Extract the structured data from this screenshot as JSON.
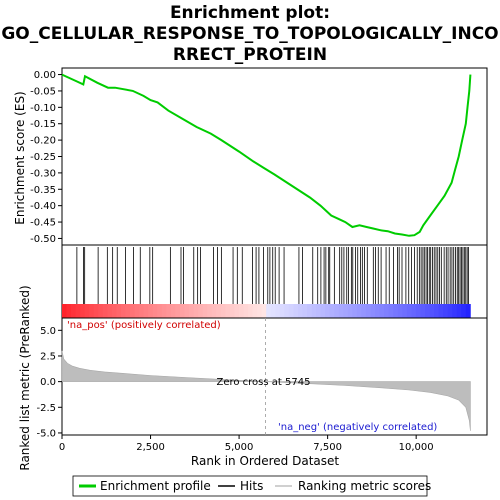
{
  "chart_data": {
    "type": "line",
    "title_lines": [
      "Enrichment plot:",
      "GO_CELLULAR_RESPONSE_TO_TOPOLOGICALLY_INCO",
      "RRECT_PROTEIN"
    ],
    "top_panel": {
      "ylabel": "Enrichment score (ES)",
      "ylim": [
        -0.52,
        0.02
      ],
      "yticks": [
        0.0,
        -0.05,
        -0.1,
        -0.15,
        -0.2,
        -0.25,
        -0.3,
        -0.35,
        -0.4,
        -0.45,
        -0.5
      ],
      "ytick_labels": [
        "0.00",
        "-0.05",
        "-0.10",
        "-0.15",
        "-0.20",
        "-0.25",
        "-0.30",
        "-0.35",
        "-0.40",
        "-0.45",
        "-0.50"
      ],
      "series": [
        {
          "name": "Enrichment profile",
          "color": "#00cc00",
          "x": [
            0,
            400,
            600,
            650,
            1000,
            1300,
            1500,
            2000,
            2300,
            2500,
            2700,
            3000,
            3400,
            3800,
            4200,
            4500,
            5000,
            5400,
            5700,
            6000,
            6500,
            7000,
            7300,
            7600,
            7800,
            8000,
            8200,
            8400,
            8600,
            8800,
            9000,
            9200,
            9400,
            9600,
            9800,
            9950,
            10100,
            10200,
            10400,
            10600,
            10800,
            11000,
            11100,
            11200,
            11300,
            11400,
            11450,
            11500,
            11530
          ],
          "y": [
            0.0,
            -0.02,
            -0.03,
            -0.005,
            -0.025,
            -0.04,
            -0.04,
            -0.05,
            -0.065,
            -0.078,
            -0.085,
            -0.11,
            -0.135,
            -0.16,
            -0.18,
            -0.2,
            -0.235,
            -0.265,
            -0.285,
            -0.305,
            -0.34,
            -0.375,
            -0.4,
            -0.43,
            -0.44,
            -0.45,
            -0.465,
            -0.46,
            -0.465,
            -0.47,
            -0.475,
            -0.478,
            -0.485,
            -0.488,
            -0.492,
            -0.49,
            -0.48,
            -0.46,
            -0.43,
            -0.4,
            -0.37,
            -0.33,
            -0.29,
            -0.25,
            -0.2,
            -0.15,
            -0.1,
            -0.05,
            0.0
          ]
        }
      ],
      "hits": [
        420,
        610,
        640,
        1020,
        1280,
        1430,
        1560,
        1790,
        2020,
        2210,
        2480,
        2560,
        3060,
        3360,
        3430,
        3720,
        3830,
        3910,
        4280,
        4390,
        4500,
        4830,
        4950,
        5090,
        5380,
        5480,
        5560,
        5690,
        5810,
        5870,
        5950,
        6020,
        6130,
        6270,
        6690,
        6790,
        7080,
        7220,
        7310,
        7400,
        7450,
        7530,
        7560,
        7690,
        7840,
        7900,
        7960,
        8040,
        8090,
        8170,
        8210,
        8290,
        8350,
        8430,
        8480,
        8540,
        8620,
        8790,
        8850,
        8930,
        9010,
        9150,
        9240,
        9360,
        9470,
        9520,
        9600,
        9710,
        9790,
        9870,
        9950,
        10030,
        10090,
        10140,
        10190,
        10230,
        10280,
        10320,
        10370,
        10410,
        10460,
        10510,
        10560,
        10610,
        10660,
        10710,
        10790,
        10850,
        10900,
        10960,
        11010,
        11060,
        11110,
        11160,
        11200,
        11240,
        11280,
        11320,
        11360,
        11400,
        11440,
        11480
      ]
    },
    "bottom_panel": {
      "ylabel": "Ranked list metric (PreRanked)",
      "xlabel": "Rank in Ordered Dataset",
      "ylim": [
        -5.2,
        6.2
      ],
      "yticks": [
        5.0,
        2.5,
        0.0,
        -2.5,
        -5.0
      ],
      "ytick_labels": [
        "5.0",
        "2.5",
        "0.0",
        "-2.5",
        "-5.0"
      ],
      "xlim": [
        0,
        12000
      ],
      "xticks": [
        0,
        2500,
        5000,
        7500,
        10000
      ],
      "xtick_labels": [
        "0",
        "2,500",
        "5,000",
        "7,500",
        "10,000"
      ],
      "metric_x": [
        0,
        50,
        150,
        300,
        500,
        800,
        1200,
        1800,
        2500,
        3500,
        4500,
        5745,
        7000,
        8000,
        9000,
        9800,
        10400,
        10900,
        11200,
        11400,
        11500,
        11530
      ],
      "metric_y": [
        3.0,
        2.2,
        1.8,
        1.5,
        1.3,
        1.1,
        0.95,
        0.78,
        0.6,
        0.4,
        0.22,
        0.0,
        -0.2,
        -0.38,
        -0.6,
        -0.82,
        -1.05,
        -1.4,
        -1.8,
        -2.5,
        -3.8,
        -4.8
      ],
      "zero_cross_label": "Zero cross at 5745",
      "zero_cross_x": 5745,
      "pos_label": "'na_pos' (positively correlated)",
      "neg_label": "'na_neg' (negatively correlated)"
    },
    "n_total": 11530,
    "legend": {
      "placement": "bottom",
      "items": [
        {
          "label": "Enrichment profile",
          "color": "#00cc00"
        },
        {
          "label": "Hits",
          "color": "#000000"
        },
        {
          "label": "Ranking metric scores",
          "color": "#c0c0c0"
        }
      ]
    }
  }
}
